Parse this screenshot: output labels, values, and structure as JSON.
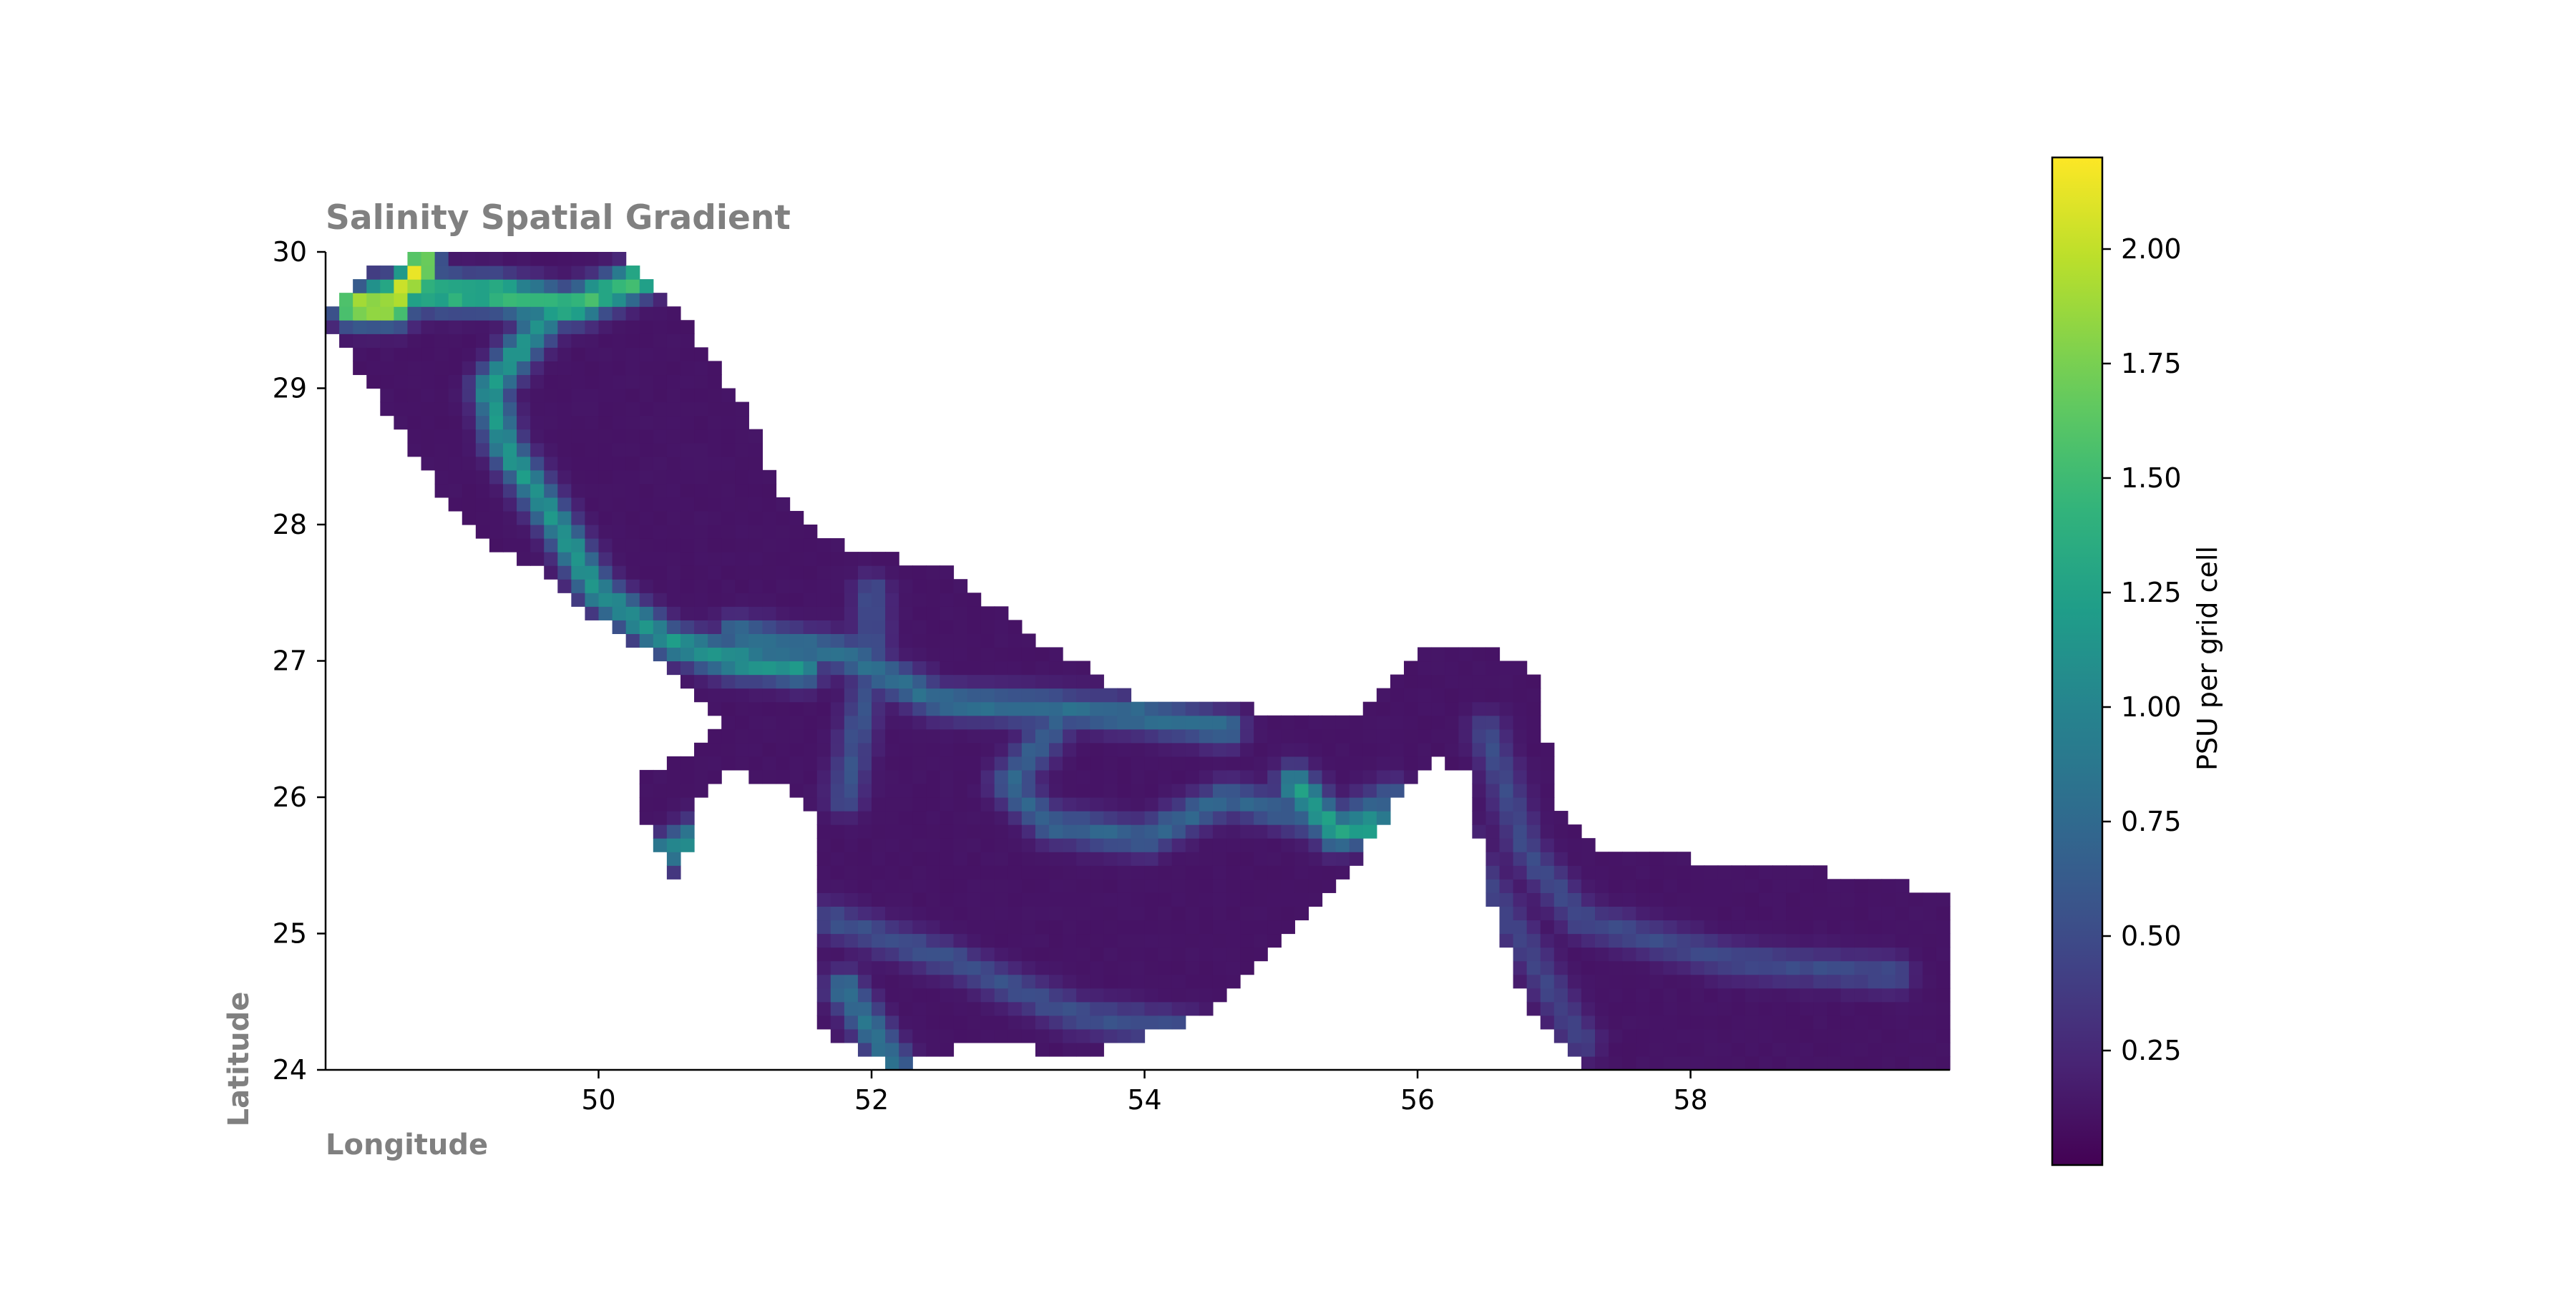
{
  "chart_data": {
    "type": "heatmap",
    "title": "Salinity Spatial Gradient",
    "xlabel": "Longitude",
    "ylabel": "Latitude",
    "xlim": [
      48.0,
      59.9
    ],
    "ylim": [
      24.0,
      30.0
    ],
    "x_ticks": [
      50,
      52,
      54,
      56,
      58
    ],
    "y_ticks": [
      24,
      25,
      26,
      27,
      28,
      29,
      30
    ],
    "colorbar": {
      "label": "PSU per grid cell",
      "range": [
        0.0,
        2.2
      ],
      "ticks": [
        0.25,
        0.5,
        0.75,
        1.0,
        1.25,
        1.5,
        1.75,
        2.0
      ],
      "tick_labels": [
        "0.25",
        "0.50",
        "0.75",
        "1.00",
        "1.25",
        "1.50",
        "1.75",
        "2.00"
      ],
      "colormap": "viridis"
    },
    "grid": false,
    "cell_size_degrees": 0.1,
    "sea_outline": [
      [
        48.0,
        29.5
      ],
      [
        48.3,
        29.85
      ],
      [
        48.8,
        30.0
      ],
      [
        50.2,
        30.0
      ],
      [
        50.7,
        29.4
      ],
      [
        51.1,
        28.8
      ],
      [
        51.4,
        28.1
      ],
      [
        51.9,
        27.8
      ],
      [
        52.5,
        27.7
      ],
      [
        53.3,
        27.1
      ],
      [
        54.0,
        26.7
      ],
      [
        54.6,
        26.7
      ],
      [
        55.0,
        26.6
      ],
      [
        55.6,
        26.65
      ],
      [
        56.0,
        27.1
      ],
      [
        56.5,
        27.1
      ],
      [
        56.9,
        26.9
      ],
      [
        57.0,
        25.9
      ],
      [
        57.4,
        25.6
      ],
      [
        58.7,
        25.5
      ],
      [
        59.9,
        25.3
      ],
      [
        59.9,
        24.0
      ],
      [
        57.2,
        24.0
      ],
      [
        56.8,
        24.5
      ],
      [
        56.5,
        25.3
      ],
      [
        56.4,
        26.2
      ],
      [
        56.1,
        26.3
      ],
      [
        55.6,
        25.6
      ],
      [
        55.1,
        25.0
      ],
      [
        54.4,
        24.4
      ],
      [
        53.6,
        24.1
      ],
      [
        52.8,
        24.2
      ],
      [
        52.2,
        24.0
      ],
      [
        51.6,
        24.3
      ],
      [
        51.6,
        25.1
      ],
      [
        51.6,
        25.9
      ],
      [
        51.3,
        26.1
      ],
      [
        51.0,
        26.2
      ],
      [
        50.7,
        25.9
      ],
      [
        50.6,
        25.3
      ],
      [
        50.3,
        25.9
      ],
      [
        50.3,
        26.2
      ],
      [
        50.6,
        26.3
      ],
      [
        50.9,
        26.5
      ],
      [
        50.5,
        27.0
      ],
      [
        50.0,
        27.3
      ],
      [
        49.5,
        27.7
      ],
      [
        49.0,
        28.0
      ],
      [
        48.6,
        28.6
      ],
      [
        48.2,
        29.2
      ]
    ],
    "gradient_ridges": [
      {
        "path": [
          [
            48.4,
            29.7
          ],
          [
            49.2,
            29.7
          ],
          [
            49.8,
            29.6
          ],
          [
            50.3,
            29.8
          ]
        ],
        "peak": 1.55
      },
      {
        "path": [
          [
            48.2,
            29.6
          ],
          [
            48.5,
            29.6
          ],
          [
            48.7,
            29.9
          ]
        ],
        "peak": 2.1
      },
      {
        "path": [
          [
            49.6,
            29.5
          ],
          [
            49.2,
            29.0
          ],
          [
            49.3,
            28.6
          ],
          [
            49.7,
            28.0
          ],
          [
            50.0,
            27.5
          ],
          [
            50.5,
            27.15
          ],
          [
            51.0,
            27.0
          ],
          [
            51.5,
            26.95
          ]
        ],
        "peak": 1.15
      },
      {
        "path": [
          [
            51.0,
            27.2
          ],
          [
            51.8,
            27.05
          ],
          [
            52.5,
            26.7
          ],
          [
            53.4,
            26.65
          ],
          [
            54.0,
            26.6
          ],
          [
            54.6,
            26.5
          ]
        ],
        "peak": 0.8
      },
      {
        "path": [
          [
            52.0,
            27.5
          ],
          [
            52.0,
            27.0
          ],
          [
            51.9,
            26.5
          ],
          [
            51.8,
            26.0
          ]
        ],
        "peak": 0.55
      },
      {
        "path": [
          [
            53.4,
            26.6
          ],
          [
            53.0,
            26.1
          ],
          [
            53.3,
            25.8
          ],
          [
            54.0,
            25.7
          ],
          [
            54.6,
            26.0
          ],
          [
            55.4,
            25.8
          ],
          [
            55.8,
            26.0
          ]
        ],
        "peak": 0.7
      },
      {
        "path": [
          [
            55.1,
            26.1
          ],
          [
            55.4,
            25.75
          ],
          [
            55.7,
            25.8
          ]
        ],
        "peak": 1.25
      },
      {
        "path": [
          [
            51.7,
            25.1
          ],
          [
            52.6,
            24.8
          ],
          [
            53.5,
            24.4
          ],
          [
            54.3,
            24.3
          ]
        ],
        "peak": 0.55
      },
      {
        "path": [
          [
            51.8,
            24.6
          ],
          [
            52.0,
            24.3
          ],
          [
            52.2,
            24.0
          ]
        ],
        "peak": 0.85
      },
      {
        "path": [
          [
            50.5,
            25.6
          ],
          [
            50.7,
            25.7
          ],
          [
            50.85,
            25.8
          ]
        ],
        "peak": 1.1
      },
      {
        "path": [
          [
            56.5,
            26.5
          ],
          [
            56.8,
            25.6
          ],
          [
            57.2,
            25.1
          ],
          [
            58.3,
            24.8
          ],
          [
            59.5,
            24.7
          ]
        ],
        "peak": 0.5
      },
      {
        "path": [
          [
            56.3,
            25.7
          ],
          [
            56.8,
            24.9
          ],
          [
            57.2,
            24.2
          ]
        ],
        "peak": 0.45
      }
    ],
    "background_level": 0.12
  }
}
